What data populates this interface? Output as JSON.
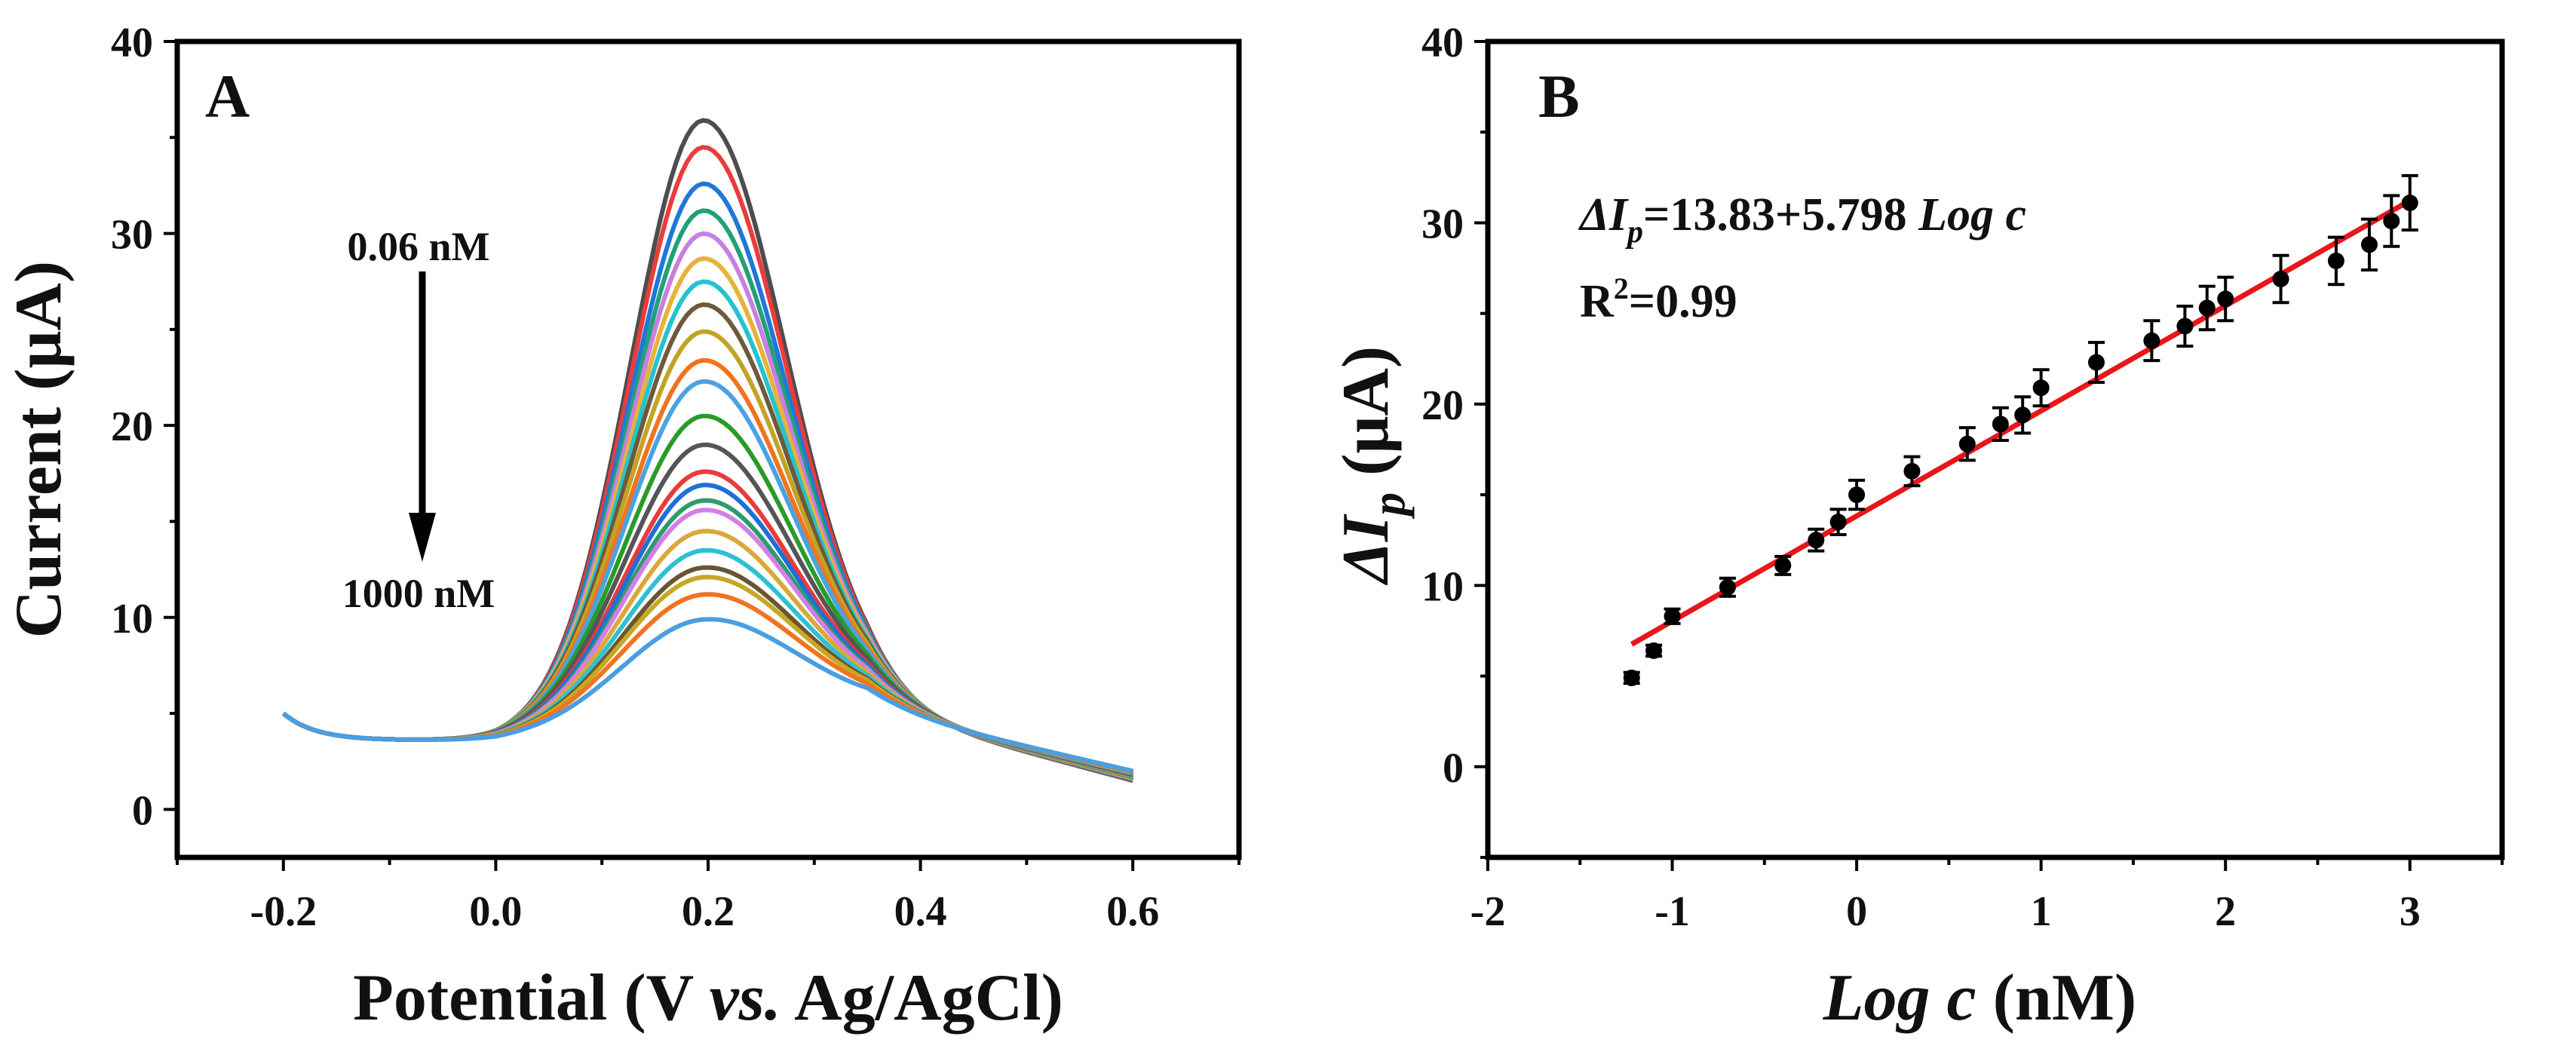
{
  "chart_data": [
    {
      "panel": "A",
      "type": "line",
      "xlabel_parts": [
        "Potential (V ",
        "vs.",
        " Ag/AgCl)"
      ],
      "ylabel": "Current (μA)",
      "xlim": [
        -0.3,
        0.7
      ],
      "ylim": [
        -2.5,
        40
      ],
      "xticks": [
        -0.2,
        0.0,
        0.2,
        0.4,
        0.6
      ],
      "xtick_labels": [
        "-0.2",
        "0.0",
        "0.2",
        "0.4",
        "0.6"
      ],
      "yticks": [
        0,
        10,
        20,
        30,
        40
      ],
      "ytick_labels": [
        "0",
        "10",
        "20",
        "30",
        "40"
      ],
      "arrow_top_label": "0.06 nM",
      "arrow_bottom_label": "1000 nM",
      "peak_potential": 0.195,
      "series": [
        {
          "peak": 35.2,
          "color": "#4d4d4d"
        },
        {
          "peak": 33.8,
          "color": "#ea3c3c"
        },
        {
          "peak": 31.9,
          "color": "#1f78d8"
        },
        {
          "peak": 30.5,
          "color": "#23a07a"
        },
        {
          "peak": 29.3,
          "color": "#c77fe0"
        },
        {
          "peak": 28.0,
          "color": "#e6b33a"
        },
        {
          "peak": 26.8,
          "color": "#25c2cf"
        },
        {
          "peak": 25.6,
          "color": "#6e5a3a"
        },
        {
          "peak": 24.2,
          "color": "#c2a326"
        },
        {
          "peak": 22.7,
          "color": "#f0741f"
        },
        {
          "peak": 21.6,
          "color": "#4aa3e0"
        },
        {
          "peak": 19.8,
          "color": "#2a9a2a"
        },
        {
          "peak": 18.3,
          "color": "#555555"
        },
        {
          "peak": 16.9,
          "color": "#e83b3b"
        },
        {
          "peak": 16.2,
          "color": "#1e6fd9"
        },
        {
          "peak": 15.4,
          "color": "#2e9a6f"
        },
        {
          "peak": 14.9,
          "color": "#d27fe8"
        },
        {
          "peak": 13.8,
          "color": "#d8a93a"
        },
        {
          "peak": 12.8,
          "color": "#2fc0d0"
        },
        {
          "peak": 11.9,
          "color": "#6b5531"
        },
        {
          "peak": 11.4,
          "color": "#c6a824"
        },
        {
          "peak": 10.5,
          "color": "#f07420"
        },
        {
          "peak": 9.2,
          "color": "#4b9ee0"
        }
      ]
    },
    {
      "panel": "B",
      "type": "scatter",
      "xlabel_parts": [
        "Log c",
        " (nM)"
      ],
      "ylabel_parts": [
        "ΔI",
        "p",
        " (μA)"
      ],
      "xlim": [
        -2,
        3.5
      ],
      "ylim": [
        -5,
        40
      ],
      "xticks": [
        -2,
        -1,
        0,
        1,
        2,
        3
      ],
      "xtick_labels": [
        "-2",
        "-1",
        "0",
        "1",
        "2",
        "3"
      ],
      "yticks": [
        0,
        10,
        20,
        30,
        40
      ],
      "ytick_labels": [
        "0",
        "10",
        "20",
        "30",
        "40"
      ],
      "equation_parts": [
        "ΔI",
        "p",
        "=13.83+5.798 ",
        "Log c"
      ],
      "r2_parts": [
        "R",
        "2",
        "=0.99"
      ],
      "fit": {
        "intercept": 13.83,
        "slope": 5.798,
        "x_range": [
          -1.22,
          3.0
        ],
        "color": "#e8161b"
      },
      "x": [
        -1.22,
        -1.1,
        -1.0,
        -0.7,
        -0.4,
        -0.22,
        -0.1,
        0.0,
        0.3,
        0.6,
        0.78,
        0.9,
        1.0,
        1.3,
        1.6,
        1.78,
        1.9,
        2.0,
        2.3,
        2.6,
        2.78,
        2.9,
        3.0
      ],
      "y": [
        4.9,
        6.4,
        8.3,
        9.9,
        11.1,
        12.5,
        13.5,
        15.0,
        16.3,
        17.8,
        18.9,
        19.4,
        20.9,
        22.3,
        23.5,
        24.3,
        25.3,
        25.8,
        26.9,
        27.9,
        28.8,
        30.1,
        31.1
      ],
      "err": [
        0.3,
        0.3,
        0.4,
        0.5,
        0.5,
        0.6,
        0.7,
        0.8,
        0.8,
        0.9,
        0.9,
        1.0,
        1.0,
        1.1,
        1.1,
        1.1,
        1.2,
        1.2,
        1.3,
        1.3,
        1.4,
        1.4,
        1.5
      ]
    }
  ]
}
